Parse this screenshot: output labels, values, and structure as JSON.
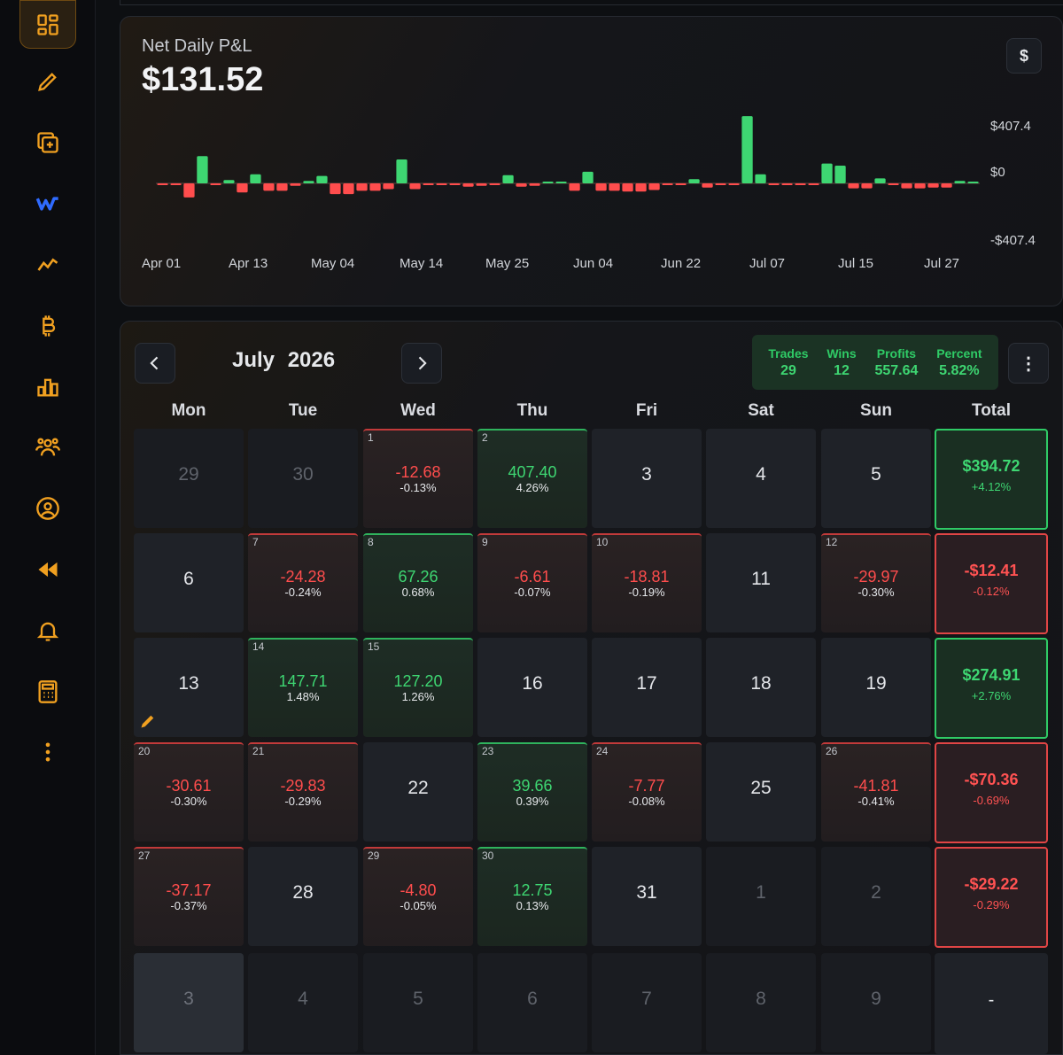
{
  "chart": {
    "title": "Net Daily P&L",
    "value": "$131.52",
    "currency_button": "$",
    "y_labels": [
      "$407.4",
      "$0",
      "-$407.4"
    ],
    "x_labels": [
      "Apr 01",
      "Apr 13",
      "May 04",
      "May 14",
      "May 25",
      "Jun 04",
      "Jun 22",
      "Jul 07",
      "Jul 15",
      "Jul 27"
    ]
  },
  "chart_data": {
    "type": "bar",
    "title": "Net Daily P&L",
    "ylim": [
      -407.4,
      407.4
    ],
    "values": [
      -5,
      -5,
      -85,
      165,
      -5,
      20,
      -55,
      55,
      -45,
      -45,
      -15,
      15,
      45,
      -65,
      -65,
      -45,
      -45,
      -35,
      145,
      -35,
      -10,
      -10,
      -10,
      -20,
      -15,
      -10,
      50,
      -20,
      -15,
      10,
      10,
      -45,
      70,
      -45,
      -45,
      -50,
      -50,
      -40,
      -10,
      -5,
      25,
      -25,
      -10,
      -10,
      407,
      55,
      -10,
      -10,
      -10,
      -10,
      120,
      107,
      -30,
      -30,
      30,
      -10,
      -30,
      -30,
      -25,
      -25,
      15,
      10
    ]
  },
  "calendar": {
    "month": "July",
    "year": "2026",
    "stats": [
      {
        "label": "Trades",
        "value": "29"
      },
      {
        "label": "Wins",
        "value": "12"
      },
      {
        "label": "Profits",
        "value": "557.64"
      },
      {
        "label": "Percent",
        "value": "5.82%"
      }
    ],
    "menu_label": "⋮",
    "weekdays": [
      "Mon",
      "Tue",
      "Wed",
      "Thu",
      "Fri",
      "Sat",
      "Sun",
      "Total"
    ],
    "weeks": [
      {
        "days": [
          {
            "type": "faded",
            "label": "29"
          },
          {
            "type": "faded",
            "label": "30"
          },
          {
            "type": "neg",
            "day": "1",
            "amount": "-12.68",
            "percent": "-0.13%"
          },
          {
            "type": "pos",
            "day": "2",
            "amount": "407.40",
            "percent": "4.26%"
          },
          {
            "type": "plain",
            "label": "3"
          },
          {
            "type": "plain",
            "label": "4"
          },
          {
            "type": "plain",
            "label": "5"
          }
        ],
        "total": {
          "type": "pos",
          "amount": "$394.72",
          "percent": "+4.12%"
        }
      },
      {
        "days": [
          {
            "type": "plain",
            "label": "6"
          },
          {
            "type": "neg",
            "day": "7",
            "amount": "-24.28",
            "percent": "-0.24%"
          },
          {
            "type": "pos",
            "day": "8",
            "amount": "67.26",
            "percent": "0.68%"
          },
          {
            "type": "neg",
            "day": "9",
            "amount": "-6.61",
            "percent": "-0.07%"
          },
          {
            "type": "neg",
            "day": "10",
            "amount": "-18.81",
            "percent": "-0.19%"
          },
          {
            "type": "plain",
            "label": "11"
          },
          {
            "type": "neg",
            "day": "12",
            "amount": "-29.97",
            "percent": "-0.30%"
          }
        ],
        "total": {
          "type": "neg",
          "amount": "-$12.41",
          "percent": "-0.12%"
        }
      },
      {
        "days": [
          {
            "type": "plain",
            "label": "13",
            "pencil": true
          },
          {
            "type": "pos",
            "day": "14",
            "amount": "147.71",
            "percent": "1.48%"
          },
          {
            "type": "pos",
            "day": "15",
            "amount": "127.20",
            "percent": "1.26%"
          },
          {
            "type": "plain",
            "label": "16"
          },
          {
            "type": "plain",
            "label": "17"
          },
          {
            "type": "plain",
            "label": "18"
          },
          {
            "type": "plain",
            "label": "19"
          }
        ],
        "total": {
          "type": "pos",
          "amount": "$274.91",
          "percent": "+2.76%"
        }
      },
      {
        "days": [
          {
            "type": "neg",
            "day": "20",
            "amount": "-30.61",
            "percent": "-0.30%"
          },
          {
            "type": "neg",
            "day": "21",
            "amount": "-29.83",
            "percent": "-0.29%"
          },
          {
            "type": "plain",
            "label": "22"
          },
          {
            "type": "pos",
            "day": "23",
            "amount": "39.66",
            "percent": "0.39%"
          },
          {
            "type": "neg",
            "day": "24",
            "amount": "-7.77",
            "percent": "-0.08%"
          },
          {
            "type": "plain",
            "label": "25"
          },
          {
            "type": "neg",
            "day": "26",
            "amount": "-41.81",
            "percent": "-0.41%"
          }
        ],
        "total": {
          "type": "neg",
          "amount": "-$70.36",
          "percent": "-0.69%"
        }
      },
      {
        "days": [
          {
            "type": "neg",
            "day": "27",
            "amount": "-37.17",
            "percent": "-0.37%"
          },
          {
            "type": "plain",
            "label": "28"
          },
          {
            "type": "neg",
            "day": "29",
            "amount": "-4.80",
            "percent": "-0.05%"
          },
          {
            "type": "pos",
            "day": "30",
            "amount": "12.75",
            "percent": "0.13%"
          },
          {
            "type": "plain",
            "label": "31"
          },
          {
            "type": "faded",
            "label": "1"
          },
          {
            "type": "faded",
            "label": "2"
          }
        ],
        "total": {
          "type": "neg",
          "amount": "-$29.22",
          "percent": "-0.29%"
        }
      },
      {
        "days": [
          {
            "type": "grey",
            "label": "3"
          },
          {
            "type": "faded",
            "label": "4"
          },
          {
            "type": "faded",
            "label": "5"
          },
          {
            "type": "faded",
            "label": "6"
          },
          {
            "type": "faded",
            "label": "7"
          },
          {
            "type": "faded",
            "label": "8"
          },
          {
            "type": "faded",
            "label": "9"
          }
        ],
        "total": {
          "type": "empty",
          "label": "-"
        }
      }
    ]
  },
  "sidebar": {
    "icons": [
      "dashboard-icon",
      "pencil-icon",
      "add-copy-icon",
      "w-logo-icon",
      "trend-line-icon",
      "bitcoin-icon",
      "bar-chart-icon",
      "users-icon",
      "user-circle-icon",
      "rewind-icon",
      "bell-icon",
      "calculator-icon",
      "more-vertical-icon"
    ],
    "accent": "#f0a020"
  },
  "colors": {
    "positive": "#3ed672",
    "negative": "#ff4d4d",
    "accent": "#f0a020",
    "background": "#0d0f12"
  }
}
